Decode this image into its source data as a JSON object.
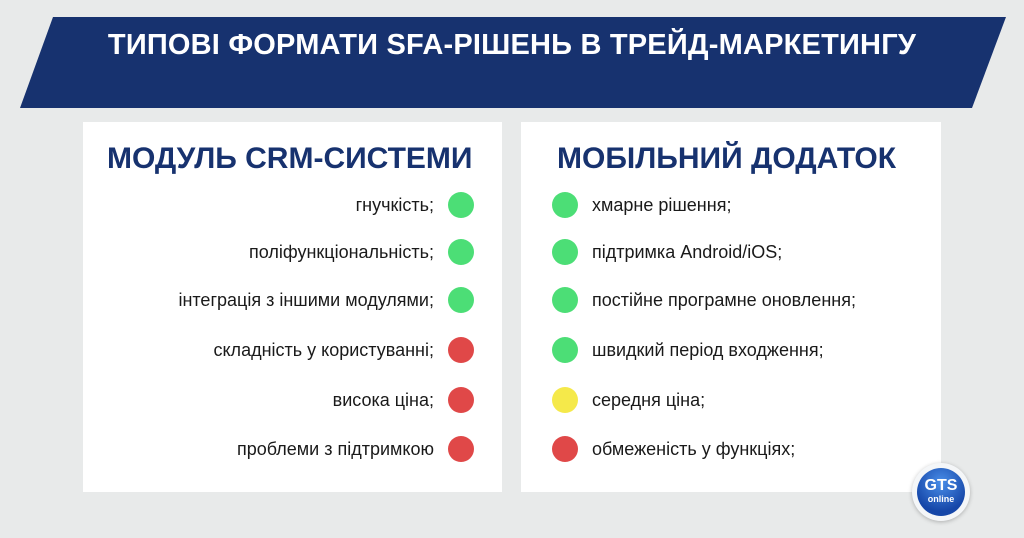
{
  "title": "ТИПОВІ ФОРМАТИ SFA-РІШЕНЬ В ТРЕЙД-МАРКЕТИНГУ",
  "colors": {
    "navy": "#17326f",
    "background": "#e8eaea",
    "green": "#4cde76",
    "red": "#e04848",
    "yellow": "#f5e94a"
  },
  "left_panel": {
    "heading": "МОДУЛЬ CRM-СИСТЕМИ",
    "items": [
      {
        "text": "гнучкість;",
        "status": "green"
      },
      {
        "text": "поліфункціональність;",
        "status": "green"
      },
      {
        "text": "інтеграція з іншими модулями;",
        "status": "green"
      },
      {
        "text": "складність у користуванні;",
        "status": "red"
      },
      {
        "text": "висока ціна;",
        "status": "red"
      },
      {
        "text": "проблеми з підтримкою",
        "status": "red"
      }
    ]
  },
  "right_panel": {
    "heading": "МОБІЛЬНИЙ ДОДАТОК",
    "items": [
      {
        "text": "хмарне рішення;",
        "status": "green"
      },
      {
        "text": "підтримка Android/iOS;",
        "status": "green"
      },
      {
        "text": "постійне програмне оновлення;",
        "status": "green"
      },
      {
        "text": "швидкий період входження;",
        "status": "green"
      },
      {
        "text": "середня ціна;",
        "status": "yellow"
      },
      {
        "text": "обмеженість у функціях;",
        "status": "red"
      }
    ]
  },
  "logo": {
    "main": "GTS",
    "sub": "online"
  }
}
